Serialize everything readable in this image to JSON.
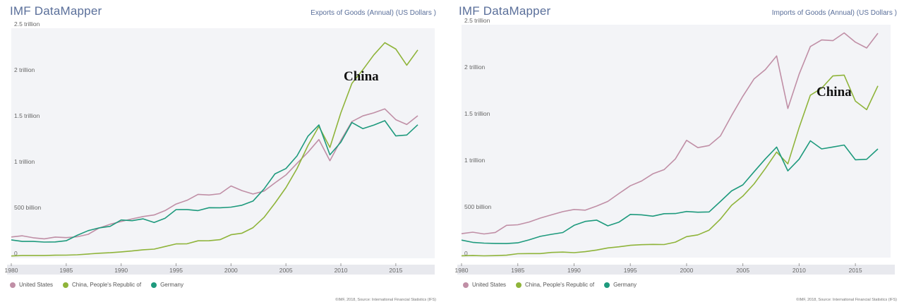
{
  "colors": {
    "united_states": "#c08fa6",
    "china": "#8fb43a",
    "germany": "#1e9a7d",
    "title": "#5a6f9a"
  },
  "panels": [
    {
      "brand": "IMF DataMapper",
      "title": "Exports of Goods (Annual) (US Dollars )",
      "source": "©IMF, 2018, Source: International Financial Statistics (IFS)",
      "annotation": "China",
      "legend": [
        "United States",
        "China, People's Republic of",
        "Germany"
      ]
    },
    {
      "brand": "IMF DataMapper",
      "title": "Imports of Goods (Annual) (US Dollars )",
      "source": "©IMF, 2018, Source: International Financial Statistics (IFS)",
      "annotation": "China",
      "legend": [
        "United States",
        "China, People's Republic of",
        "Germany"
      ]
    }
  ],
  "chart_data": [
    {
      "type": "line",
      "title": "Exports of Goods (Annual) (US Dollars )",
      "x": [
        1980,
        1981,
        1982,
        1983,
        1984,
        1985,
        1986,
        1987,
        1988,
        1989,
        1990,
        1991,
        1992,
        1993,
        1994,
        1995,
        1996,
        1997,
        1998,
        1999,
        2000,
        2001,
        2002,
        2003,
        2004,
        2005,
        2006,
        2007,
        2008,
        2009,
        2010,
        2011,
        2012,
        2013,
        2014,
        2015,
        2016,
        2017
      ],
      "xticks": [
        "1980",
        "1985",
        "1990",
        "1995",
        "2000",
        "2005",
        "2010",
        "2015"
      ],
      "yticks": [
        "0",
        "500 billion",
        "1 trillion",
        "1.5 trillion",
        "2 trillion",
        "2.5 trillion"
      ],
      "ylim": [
        0,
        2500
      ],
      "series": [
        {
          "name": "United States",
          "color": "#c08fa6",
          "values": [
            225,
            238,
            216,
            205,
            224,
            218,
            227,
            254,
            322,
            364,
            393,
            422,
            448,
            465,
            512,
            584,
            625,
            689,
            682,
            696,
            781,
            730,
            693,
            725,
            815,
            901,
            1026,
            1148,
            1287,
            1056,
            1278,
            1482,
            1545,
            1578,
            1621,
            1503,
            1451,
            1546
          ]
        },
        {
          "name": "China, People's Republic of",
          "color": "#8fb43a",
          "values": [
            18,
            22,
            22,
            22,
            26,
            27,
            31,
            39,
            48,
            53,
            62,
            72,
            85,
            92,
            121,
            149,
            151,
            183,
            184,
            195,
            249,
            266,
            326,
            438,
            593,
            762,
            969,
            1220,
            1430,
            1201,
            1578,
            1898,
            2048,
            2209,
            2342,
            2273,
            2097,
            2263
          ]
        },
        {
          "name": "Germany",
          "color": "#1e9a7d",
          "values": [
            193,
            176,
            176,
            169,
            171,
            184,
            243,
            294,
            324,
            341,
            410,
            402,
            422,
            382,
            429,
            523,
            524,
            512,
            544,
            543,
            550,
            571,
            616,
            748,
            912,
            971,
            1108,
            1322,
            1446,
            1120,
            1258,
            1472,
            1405,
            1445,
            1492,
            1326,
            1336,
            1448
          ]
        }
      ]
    },
    {
      "type": "line",
      "title": "Imports of Goods (Annual) (US Dollars )",
      "x": [
        1980,
        1981,
        1982,
        1983,
        1984,
        1985,
        1986,
        1987,
        1988,
        1989,
        1990,
        1991,
        1992,
        1993,
        1994,
        1995,
        1996,
        1997,
        1998,
        1999,
        2000,
        2001,
        2002,
        2003,
        2004,
        2005,
        2006,
        2007,
        2008,
        2009,
        2010,
        2011,
        2012,
        2013,
        2014,
        2015,
        2016,
        2017
      ],
      "xticks": [
        "1980",
        "1985",
        "1990",
        "1995",
        "2000",
        "2005",
        "2010",
        "2015"
      ],
      "yticks": [
        "0",
        "500 billion",
        "1 trillion",
        "1.5 trillion",
        "2 trillion",
        "2.5 trillion"
      ],
      "ylim": [
        0,
        2500
      ],
      "series": [
        {
          "name": "United States",
          "color": "#c08fa6",
          "values": [
            257,
            273,
            254,
            270,
            346,
            352,
            382,
            424,
            459,
            493,
            517,
            509,
            553,
            603,
            689,
            771,
            822,
            899,
            944,
            1059,
            1259,
            1180,
            1203,
            1305,
            1525,
            1732,
            1919,
            2018,
            2165,
            1601,
            1969,
            2266,
            2336,
            2329,
            2412,
            2313,
            2250,
            2408
          ]
        },
        {
          "name": "China, People's Republic of",
          "color": "#8fb43a",
          "values": [
            20,
            22,
            19,
            21,
            26,
            42,
            43,
            43,
            55,
            59,
            53,
            64,
            81,
            104,
            116,
            132,
            139,
            142,
            140,
            166,
            225,
            244,
            295,
            413,
            561,
            660,
            792,
            956,
            1133,
            1006,
            1396,
            1743,
            1818,
            1950,
            1959,
            1680,
            1588,
            1843
          ]
        },
        {
          "name": "Germany",
          "color": "#1e9a7d",
          "values": [
            188,
            164,
            155,
            152,
            151,
            158,
            190,
            228,
            250,
            269,
            346,
            389,
            402,
            341,
            381,
            464,
            459,
            445,
            471,
            473,
            495,
            487,
            490,
            602,
            716,
            780,
            922,
            1059,
            1186,
            931,
            1056,
            1254,
            1167,
            1187,
            1208,
            1050,
            1055,
            1167
          ]
        }
      ]
    }
  ]
}
